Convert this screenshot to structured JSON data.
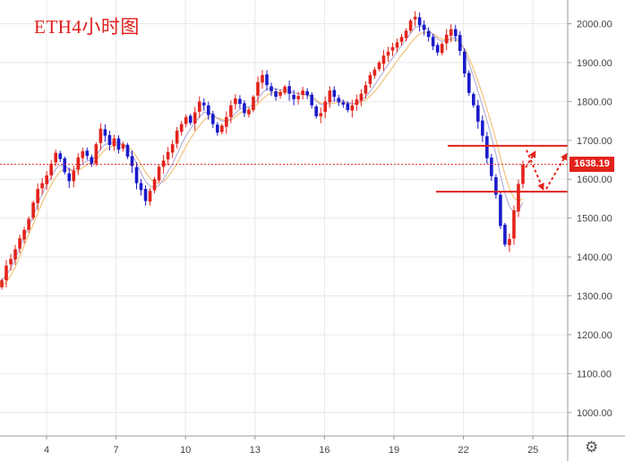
{
  "title": "ETH4小时图",
  "current_price_label": "1638.19",
  "settings_icon": "gear-icon",
  "colors": {
    "up": "#e3231b",
    "down": "#1a1acb",
    "ma_fast": "#b7b0d8",
    "ma_slow": "#f2c27a",
    "annotation": "#e3231b",
    "price_line": "#e3231b",
    "grid": "#e8e8e8",
    "axis_text": "#444444"
  },
  "chart_data": {
    "type": "candlestick",
    "title": "ETH4小时图",
    "xlabel": "",
    "ylabel": "",
    "x_ticks": [
      "4",
      "7",
      "10",
      "13",
      "16",
      "19",
      "22",
      "25"
    ],
    "y_ticks": [
      "1000.00",
      "1100.00",
      "1200.00",
      "1300.00",
      "1400.00",
      "1500.00",
      "1600.00",
      "1700.00",
      "1800.00",
      "1900.00",
      "2000.00"
    ],
    "ylim": [
      960,
      2060
    ],
    "grid": true,
    "current_price": 1638.19,
    "support_level": 1568,
    "resistance_level": 1686,
    "closes": [
      1340,
      1378,
      1395,
      1420,
      1448,
      1470,
      1498,
      1540,
      1575,
      1590,
      1610,
      1640,
      1668,
      1652,
      1618,
      1595,
      1622,
      1656,
      1672,
      1660,
      1640,
      1690,
      1730,
      1712,
      1688,
      1705,
      1676,
      1690,
      1658,
      1634,
      1590,
      1572,
      1544,
      1570,
      1600,
      1632,
      1648,
      1670,
      1690,
      1725,
      1742,
      1760,
      1745,
      1772,
      1800,
      1790,
      1765,
      1742,
      1720,
      1738,
      1760,
      1790,
      1808,
      1794,
      1770,
      1778,
      1812,
      1850,
      1868,
      1842,
      1826,
      1812,
      1824,
      1838,
      1820,
      1806,
      1814,
      1828,
      1816,
      1790,
      1762,
      1770,
      1800,
      1828,
      1812,
      1798,
      1792,
      1778,
      1790,
      1805,
      1820,
      1842,
      1868,
      1882,
      1900,
      1918,
      1928,
      1940,
      1952,
      1966,
      1982,
      2008,
      2018,
      1996,
      1984,
      1966,
      1942,
      1926,
      1948,
      1972,
      1986,
      1968,
      1930,
      1872,
      1822,
      1790,
      1748,
      1712,
      1654,
      1608,
      1560,
      1480,
      1432,
      1446,
      1520,
      1588,
      1638
    ],
    "ma_fast": [
      1340,
      1352,
      1371,
      1395,
      1425,
      1452,
      1478,
      1505,
      1536,
      1562,
      1585,
      1605,
      1626,
      1636,
      1634,
      1626,
      1624,
      1630,
      1640,
      1647,
      1650,
      1660,
      1678,
      1690,
      1692,
      1696,
      1694,
      1690,
      1680,
      1664,
      1640,
      1616,
      1594,
      1582,
      1578,
      1584,
      1600,
      1620,
      1640,
      1664,
      1690,
      1712,
      1730,
      1746,
      1760,
      1772,
      1772,
      1766,
      1756,
      1750,
      1748,
      1756,
      1770,
      1780,
      1784,
      1786,
      1792,
      1806,
      1822,
      1832,
      1834,
      1832,
      1830,
      1830,
      1828,
      1822,
      1820,
      1820,
      1818,
      1812,
      1800,
      1792,
      1792,
      1798,
      1802,
      1804,
      1802,
      1798,
      1794,
      1796,
      1802,
      1812,
      1826,
      1842,
      1860,
      1878,
      1895,
      1912,
      1928,
      1944,
      1958,
      1976,
      1990,
      1994,
      1992,
      1984,
      1972,
      1960,
      1955,
      1956,
      1962,
      1964,
      1954,
      1930,
      1898,
      1864,
      1826,
      1790,
      1750,
      1708,
      1664,
      1610,
      1564,
      1530,
      1515,
      1520,
      1540
    ],
    "ma_slow": [
      1325,
      1335,
      1352,
      1375,
      1402,
      1430,
      1458,
      1484,
      1512,
      1540,
      1564,
      1586,
      1605,
      1620,
      1626,
      1624,
      1620,
      1622,
      1630,
      1638,
      1642,
      1650,
      1664,
      1676,
      1682,
      1688,
      1690,
      1690,
      1684,
      1674,
      1658,
      1638,
      1618,
      1602,
      1592,
      1588,
      1594,
      1606,
      1622,
      1640,
      1662,
      1684,
      1704,
      1722,
      1738,
      1752,
      1760,
      1762,
      1758,
      1754,
      1750,
      1752,
      1760,
      1770,
      1776,
      1780,
      1784,
      1794,
      1806,
      1816,
      1822,
      1824,
      1824,
      1824,
      1824,
      1822,
      1820,
      1818,
      1816,
      1812,
      1804,
      1796,
      1794,
      1794,
      1796,
      1798,
      1798,
      1796,
      1794,
      1794,
      1798,
      1804,
      1814,
      1826,
      1840,
      1856,
      1872,
      1888,
      1904,
      1920,
      1934,
      1950,
      1964,
      1974,
      1978,
      1978,
      1974,
      1966,
      1960,
      1958,
      1958,
      1958,
      1952,
      1936,
      1912,
      1884,
      1852,
      1818,
      1780,
      1742,
      1702,
      1656,
      1612,
      1576,
      1552,
      1544,
      1550
    ]
  }
}
